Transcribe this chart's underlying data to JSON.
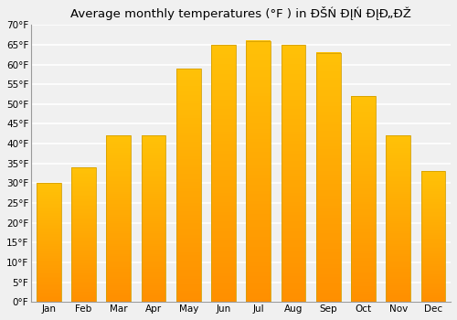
{
  "title": "Average monthly temperatures (°F ) in ĐŠŃ ĐĮŃ ĐĮĐ„ĐŽ",
  "months": [
    "Jan",
    "Feb",
    "Mar",
    "Apr",
    "May",
    "Jun",
    "Jul",
    "Aug",
    "Sep",
    "Oct",
    "Nov",
    "Dec"
  ],
  "values": [
    30,
    34,
    42,
    42,
    59,
    65,
    66,
    65,
    63,
    52,
    42,
    33
  ],
  "ylim": [
    0,
    70
  ],
  "yticks": [
    0,
    5,
    10,
    15,
    20,
    25,
    30,
    35,
    40,
    45,
    50,
    55,
    60,
    65,
    70
  ],
  "ytick_labels": [
    "0°F",
    "5°F",
    "10°F",
    "15°F",
    "20°F",
    "25°F",
    "30°F",
    "35°F",
    "40°F",
    "45°F",
    "50°F",
    "55°F",
    "60°F",
    "65°F",
    "70°F"
  ],
  "bar_color_top": "#FFC107",
  "bar_color_bottom": "#FF8F00",
  "background_color": "#f0f0f0",
  "grid_color": "#ffffff",
  "title_fontsize": 9.5,
  "tick_fontsize": 7.5,
  "bar_edge_color": "#d4a000",
  "figsize": [
    5.0,
    3.5
  ],
  "dpi": 100
}
